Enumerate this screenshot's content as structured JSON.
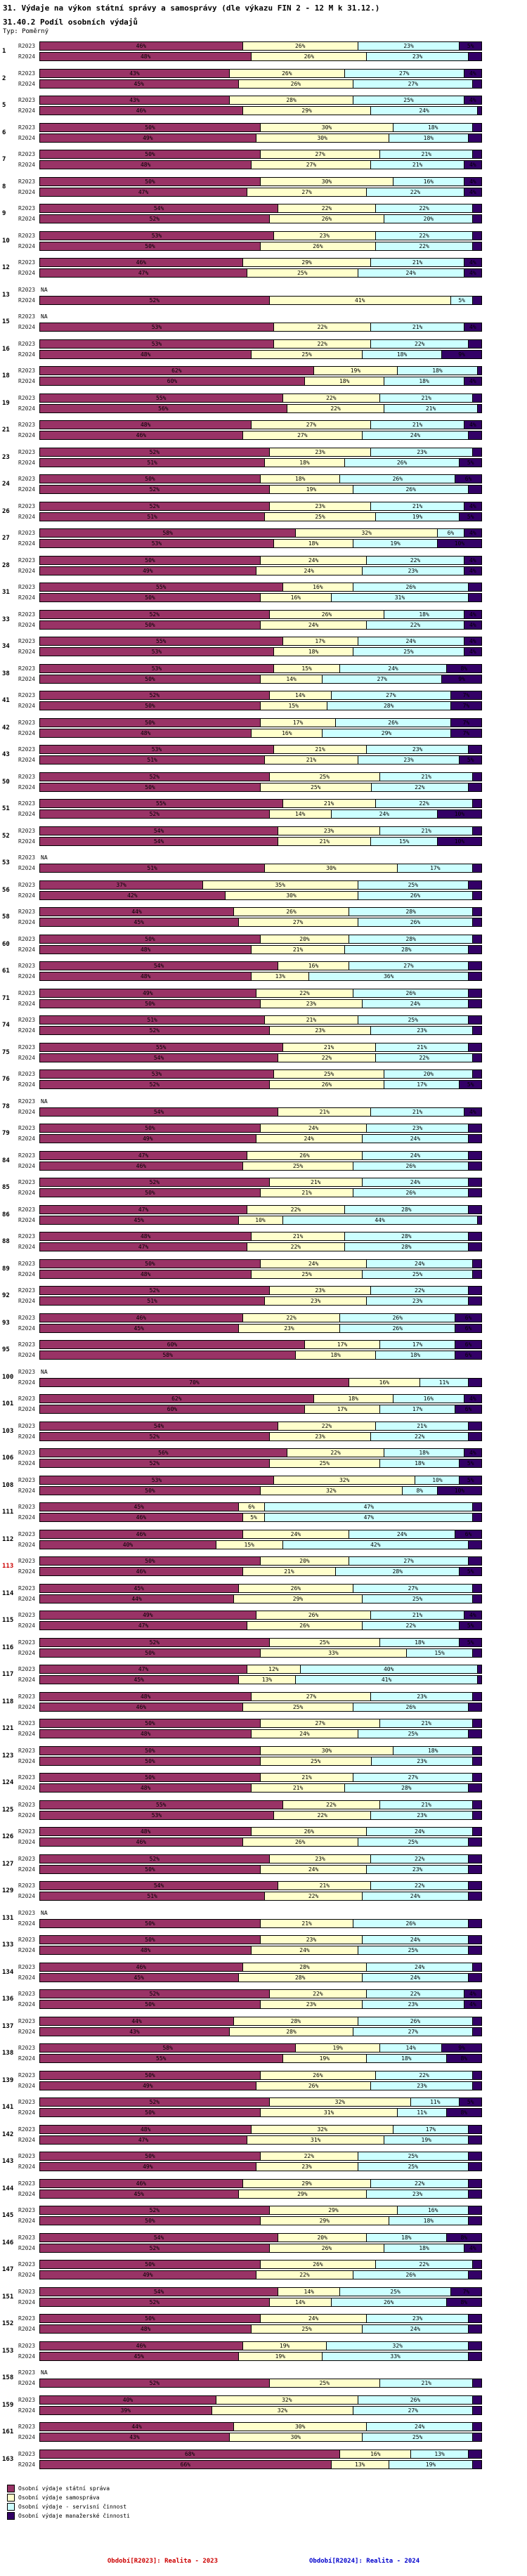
{
  "header": {
    "title": "31. Výdaje na výkon státní správy a samosprávy (dle výkazu FIN 2 - 12 M k 31.12.)",
    "subtitle": "31.40.2 Podíl osobních výdajů",
    "type_label": "Typ: Poměrný"
  },
  "chart_data": {
    "type": "bar",
    "orientation": "horizontal",
    "stacked": true,
    "unit": "%",
    "x_range": [
      0,
      100
    ],
    "grid": false,
    "legend_position": "bottom-left",
    "period_labels": [
      "R2023",
      "R2024"
    ],
    "na_label": "NA",
    "segments": [
      "Osobní výdaje státní správa",
      "Osobní výdaje samospráva",
      "Osobní výdaje - servisní činnost",
      "Osobní výdaje manažerské činnosti"
    ],
    "colors": [
      "#993366",
      "#FFFFCC",
      "#CCFFFF",
      "#330066"
    ],
    "highlight_color": "#CC0000",
    "highlighted_group": "113",
    "groups": [
      {
        "n": "1",
        "r2023": [
          46,
          26,
          23,
          5
        ],
        "r2024": [
          48,
          26,
          23,
          3
        ]
      },
      {
        "n": "2",
        "r2023": [
          43,
          26,
          27,
          4
        ],
        "r2024": [
          45,
          26,
          27,
          2
        ]
      },
      {
        "n": "5",
        "r2023": [
          43,
          28,
          25,
          4
        ],
        "r2024": [
          46,
          29,
          24,
          1
        ]
      },
      {
        "n": "6",
        "r2023": [
          50,
          30,
          18,
          2
        ],
        "r2024": [
          49,
          30,
          18,
          3
        ]
      },
      {
        "n": "7",
        "r2023": [
          50,
          27,
          21,
          2
        ],
        "r2024": [
          48,
          27,
          21,
          4
        ]
      },
      {
        "n": "8",
        "r2023": [
          50,
          30,
          16,
          4
        ],
        "r2024": [
          47,
          27,
          22,
          4
        ]
      },
      {
        "n": "9",
        "r2023": [
          54,
          22,
          22,
          2
        ],
        "r2024": [
          52,
          26,
          20,
          2
        ]
      },
      {
        "n": "10",
        "r2023": [
          53,
          23,
          22,
          2
        ],
        "r2024": [
          50,
          26,
          22,
          2
        ]
      },
      {
        "n": "12",
        "r2023": [
          46,
          29,
          21,
          4
        ],
        "r2024": [
          47,
          25,
          24,
          4
        ]
      },
      {
        "n": "13",
        "r2023": null,
        "r2024": [
          52,
          41,
          5,
          2
        ]
      },
      {
        "n": "15",
        "r2023": null,
        "r2024": [
          53,
          22,
          21,
          4
        ]
      },
      {
        "n": "16",
        "r2023": [
          53,
          22,
          22,
          3
        ],
        "r2024": [
          48,
          25,
          18,
          9
        ]
      },
      {
        "n": "18",
        "r2023": [
          62,
          19,
          18,
          1
        ],
        "r2024": [
          60,
          18,
          18,
          4
        ]
      },
      {
        "n": "19",
        "r2023": [
          55,
          22,
          21,
          2
        ],
        "r2024": [
          56,
          22,
          21,
          1
        ]
      },
      {
        "n": "21",
        "r2023": [
          48,
          27,
          21,
          4
        ],
        "r2024": [
          46,
          27,
          24,
          3
        ]
      },
      {
        "n": "23",
        "r2023": [
          52,
          23,
          23,
          2
        ],
        "r2024": [
          51,
          18,
          26,
          5
        ]
      },
      {
        "n": "24",
        "r2023": [
          50,
          18,
          26,
          6
        ],
        "r2024": [
          52,
          19,
          26,
          3
        ]
      },
      {
        "n": "26",
        "r2023": [
          52,
          23,
          21,
          4
        ],
        "r2024": [
          51,
          25,
          19,
          5
        ]
      },
      {
        "n": "27",
        "r2023": [
          58,
          32,
          6,
          4
        ],
        "r2024": [
          53,
          18,
          19,
          10
        ]
      },
      {
        "n": "28",
        "r2023": [
          50,
          24,
          22,
          4
        ],
        "r2024": [
          49,
          24,
          23,
          4
        ]
      },
      {
        "n": "31",
        "r2023": [
          55,
          16,
          26,
          3
        ],
        "r2024": [
          50,
          16,
          31,
          3
        ]
      },
      {
        "n": "33",
        "r2023": [
          52,
          26,
          18,
          4
        ],
        "r2024": [
          50,
          24,
          22,
          4
        ]
      },
      {
        "n": "34",
        "r2023": [
          55,
          17,
          24,
          4
        ],
        "r2024": [
          53,
          18,
          25,
          4
        ]
      },
      {
        "n": "38",
        "r2023": [
          53,
          15,
          24,
          8
        ],
        "r2024": [
          50,
          14,
          27,
          9
        ]
      },
      {
        "n": "41",
        "r2023": [
          52,
          14,
          27,
          7
        ],
        "r2024": [
          50,
          15,
          28,
          7
        ]
      },
      {
        "n": "42",
        "r2023": [
          50,
          17,
          26,
          7
        ],
        "r2024": [
          48,
          16,
          29,
          7
        ]
      },
      {
        "n": "43",
        "r2023": [
          53,
          21,
          23,
          3
        ],
        "r2024": [
          51,
          21,
          23,
          5
        ]
      },
      {
        "n": "50",
        "r2023": [
          52,
          25,
          21,
          2
        ],
        "r2024": [
          50,
          25,
          22,
          3
        ]
      },
      {
        "n": "51",
        "r2023": [
          55,
          21,
          22,
          2
        ],
        "r2024": [
          52,
          14,
          24,
          10
        ]
      },
      {
        "n": "52",
        "r2023": [
          54,
          23,
          21,
          2
        ],
        "r2024": [
          54,
          21,
          15,
          10
        ]
      },
      {
        "n": "53",
        "r2023": null,
        "r2024": [
          51,
          30,
          17,
          2
        ]
      },
      {
        "n": "56",
        "r2023": [
          37,
          35,
          25,
          3
        ],
        "r2024": [
          42,
          30,
          26,
          2
        ]
      },
      {
        "n": "58",
        "r2023": [
          44,
          26,
          28,
          2
        ],
        "r2024": [
          45,
          27,
          26,
          2
        ]
      },
      {
        "n": "60",
        "r2023": [
          50,
          20,
          28,
          2
        ],
        "r2024": [
          48,
          21,
          28,
          3
        ]
      },
      {
        "n": "61",
        "r2023": [
          54,
          16,
          27,
          3
        ],
        "r2024": [
          48,
          13,
          36,
          3
        ]
      },
      {
        "n": "71",
        "r2023": [
          49,
          22,
          26,
          3
        ],
        "r2024": [
          50,
          23,
          24,
          3
        ]
      },
      {
        "n": "74",
        "r2023": [
          51,
          21,
          25,
          3
        ],
        "r2024": [
          52,
          23,
          23,
          2
        ]
      },
      {
        "n": "75",
        "r2023": [
          55,
          21,
          21,
          3
        ],
        "r2024": [
          54,
          22,
          22,
          2
        ]
      },
      {
        "n": "76",
        "r2023": [
          53,
          25,
          20,
          2
        ],
        "r2024": [
          52,
          26,
          17,
          5
        ]
      },
      {
        "n": "78",
        "r2023": null,
        "r2024": [
          54,
          21,
          21,
          4
        ]
      },
      {
        "n": "79",
        "r2023": [
          50,
          24,
          23,
          3
        ],
        "r2024": [
          49,
          24,
          24,
          3
        ]
      },
      {
        "n": "84",
        "r2023": [
          47,
          26,
          24,
          3
        ],
        "r2024": [
          46,
          25,
          26,
          3
        ]
      },
      {
        "n": "85",
        "r2023": [
          52,
          21,
          24,
          3
        ],
        "r2024": [
          50,
          21,
          26,
          3
        ]
      },
      {
        "n": "86",
        "r2023": [
          47,
          22,
          28,
          3
        ],
        "r2024": [
          45,
          10,
          44,
          1
        ]
      },
      {
        "n": "88",
        "r2023": [
          48,
          21,
          28,
          3
        ],
        "r2024": [
          47,
          22,
          28,
          3
        ]
      },
      {
        "n": "89",
        "r2023": [
          50,
          24,
          24,
          2
        ],
        "r2024": [
          48,
          25,
          25,
          2
        ]
      },
      {
        "n": "92",
        "r2023": [
          52,
          23,
          22,
          3
        ],
        "r2024": [
          51,
          23,
          23,
          3
        ]
      },
      {
        "n": "93",
        "r2023": [
          46,
          22,
          26,
          6
        ],
        "r2024": [
          45,
          23,
          26,
          6
        ]
      },
      {
        "n": "95",
        "r2023": [
          60,
          17,
          17,
          6
        ],
        "r2024": [
          58,
          18,
          18,
          6
        ]
      },
      {
        "n": "100",
        "r2023": null,
        "r2024": [
          70,
          16,
          11,
          3
        ]
      },
      {
        "n": "101",
        "r2023": [
          62,
          18,
          16,
          4
        ],
        "r2024": [
          60,
          17,
          17,
          6
        ]
      },
      {
        "n": "103",
        "r2023": [
          54,
          22,
          21,
          3
        ],
        "r2024": [
          52,
          23,
          22,
          3
        ]
      },
      {
        "n": "106",
        "r2023": [
          56,
          22,
          18,
          4
        ],
        "r2024": [
          52,
          25,
          18,
          5
        ]
      },
      {
        "n": "108",
        "r2023": [
          53,
          32,
          10,
          5
        ],
        "r2024": [
          50,
          32,
          8,
          10
        ]
      },
      {
        "n": "111",
        "r2023": [
          45,
          6,
          47,
          2
        ],
        "r2024": [
          46,
          5,
          47,
          2
        ]
      },
      {
        "n": "112",
        "r2023": [
          46,
          24,
          24,
          6
        ],
        "r2024": [
          40,
          15,
          42,
          3
        ]
      },
      {
        "n": "113",
        "r2023": [
          50,
          20,
          27,
          3
        ],
        "r2024": [
          46,
          21,
          28,
          5
        ]
      },
      {
        "n": "114",
        "r2023": [
          45,
          26,
          27,
          2
        ],
        "r2024": [
          44,
          29,
          25,
          2
        ]
      },
      {
        "n": "115",
        "r2023": [
          49,
          26,
          21,
          4
        ],
        "r2024": [
          47,
          26,
          22,
          5
        ]
      },
      {
        "n": "116",
        "r2023": [
          52,
          25,
          18,
          5
        ],
        "r2024": [
          50,
          33,
          15,
          2
        ]
      },
      {
        "n": "117",
        "r2023": [
          47,
          12,
          40,
          1
        ],
        "r2024": [
          45,
          13,
          41,
          1
        ]
      },
      {
        "n": "118",
        "r2023": [
          48,
          27,
          23,
          2
        ],
        "r2024": [
          46,
          25,
          26,
          3
        ]
      },
      {
        "n": "121",
        "r2023": [
          50,
          27,
          21,
          2
        ],
        "r2024": [
          48,
          24,
          25,
          3
        ]
      },
      {
        "n": "123",
        "r2023": [
          50,
          30,
          18,
          2
        ],
        "r2024": [
          50,
          25,
          23,
          2
        ]
      },
      {
        "n": "124",
        "r2023": [
          50,
          21,
          27,
          2
        ],
        "r2024": [
          48,
          21,
          28,
          3
        ]
      },
      {
        "n": "125",
        "r2023": [
          55,
          22,
          21,
          2
        ],
        "r2024": [
          53,
          22,
          23,
          2
        ]
      },
      {
        "n": "126",
        "r2023": [
          48,
          26,
          24,
          2
        ],
        "r2024": [
          46,
          26,
          25,
          3
        ]
      },
      {
        "n": "127",
        "r2023": [
          52,
          23,
          22,
          3
        ],
        "r2024": [
          50,
          24,
          23,
          3
        ]
      },
      {
        "n": "129",
        "r2023": [
          54,
          21,
          22,
          3
        ],
        "r2024": [
          51,
          22,
          24,
          3
        ]
      },
      {
        "n": "131",
        "r2023": null,
        "r2024": [
          50,
          21,
          26,
          3
        ]
      },
      {
        "n": "133",
        "r2023": [
          50,
          23,
          24,
          3
        ],
        "r2024": [
          48,
          24,
          25,
          3
        ]
      },
      {
        "n": "134",
        "r2023": [
          46,
          28,
          24,
          2
        ],
        "r2024": [
          45,
          28,
          24,
          3
        ]
      },
      {
        "n": "136",
        "r2023": [
          52,
          22,
          22,
          4
        ],
        "r2024": [
          50,
          23,
          23,
          4
        ]
      },
      {
        "n": "137",
        "r2023": [
          44,
          28,
          26,
          2
        ],
        "r2024": [
          43,
          28,
          27,
          2
        ]
      },
      {
        "n": "138",
        "r2023": [
          58,
          19,
          14,
          9
        ],
        "r2024": [
          55,
          19,
          18,
          8
        ]
      },
      {
        "n": "139",
        "r2023": [
          50,
          26,
          22,
          2
        ],
        "r2024": [
          49,
          26,
          23,
          2
        ]
      },
      {
        "n": "141",
        "r2023": [
          52,
          32,
          11,
          5
        ],
        "r2024": [
          50,
          31,
          11,
          8
        ]
      },
      {
        "n": "142",
        "r2023": [
          48,
          32,
          17,
          3
        ],
        "r2024": [
          47,
          31,
          19,
          3
        ]
      },
      {
        "n": "143",
        "r2023": [
          50,
          22,
          25,
          3
        ],
        "r2024": [
          49,
          23,
          25,
          3
        ]
      },
      {
        "n": "144",
        "r2023": [
          46,
          29,
          22,
          3
        ],
        "r2024": [
          45,
          29,
          23,
          3
        ]
      },
      {
        "n": "145",
        "r2023": [
          52,
          29,
          16,
          3
        ],
        "r2024": [
          50,
          29,
          18,
          3
        ]
      },
      {
        "n": "146",
        "r2023": [
          54,
          20,
          18,
          8
        ],
        "r2024": [
          52,
          26,
          18,
          4
        ]
      },
      {
        "n": "147",
        "r2023": [
          50,
          26,
          22,
          2
        ],
        "r2024": [
          49,
          22,
          26,
          3
        ]
      },
      {
        "n": "151",
        "r2023": [
          54,
          14,
          25,
          7
        ],
        "r2024": [
          52,
          14,
          26,
          8
        ]
      },
      {
        "n": "152",
        "r2023": [
          50,
          24,
          23,
          3
        ],
        "r2024": [
          48,
          25,
          24,
          3
        ]
      },
      {
        "n": "153",
        "r2023": [
          46,
          19,
          32,
          3
        ],
        "r2024": [
          45,
          19,
          33,
          3
        ]
      },
      {
        "n": "158",
        "r2023": null,
        "r2024": [
          52,
          25,
          21,
          2
        ]
      },
      {
        "n": "159",
        "r2023": [
          40,
          32,
          26,
          2
        ],
        "r2024": [
          39,
          32,
          27,
          2
        ]
      },
      {
        "n": "161",
        "r2023": [
          44,
          30,
          24,
          2
        ],
        "r2024": [
          43,
          30,
          25,
          2
        ]
      },
      {
        "n": "163",
        "r2023": [
          68,
          16,
          13,
          3
        ],
        "r2024": [
          66,
          13,
          19,
          2
        ]
      }
    ]
  },
  "footer": {
    "left": "Období[R2023]: Realita - 2023",
    "right": "Období[R2024]: Realita - 2024"
  }
}
